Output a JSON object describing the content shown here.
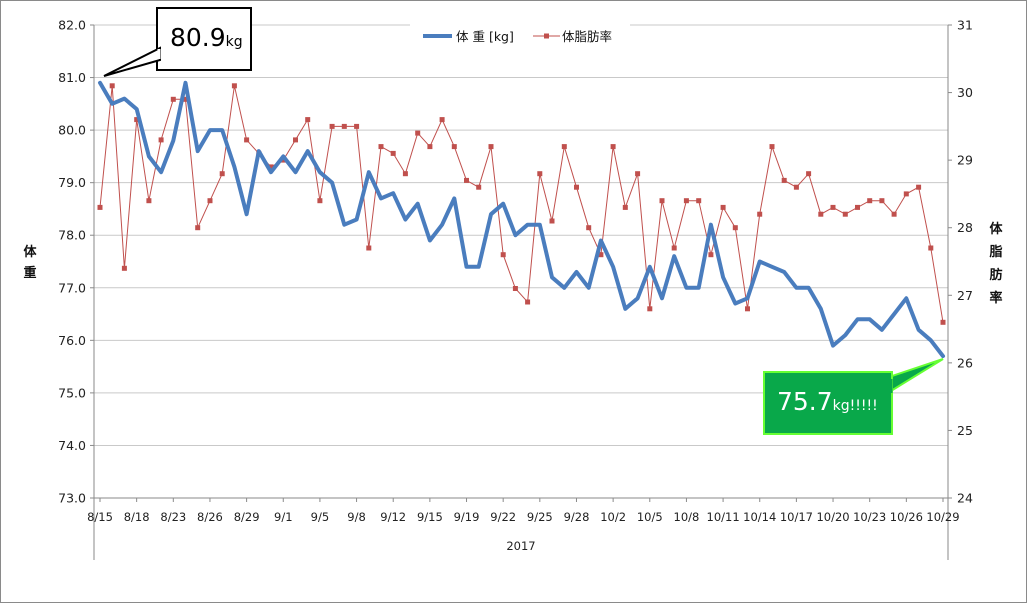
{
  "chart_data": {
    "type": "line",
    "title": "",
    "legend": {
      "placement": "top-center",
      "entries": [
        "体 重 [kg]",
        "体脂肪率"
      ]
    },
    "y_left": {
      "label_chars": [
        "体",
        "重"
      ],
      "ylim": [
        73.0,
        82.0
      ],
      "ticks": [
        "73.0",
        "74.0",
        "75.0",
        "76.0",
        "77.0",
        "78.0",
        "79.0",
        "80.0",
        "81.0",
        "82.0"
      ]
    },
    "y_right": {
      "label_chars": [
        "体",
        "脂",
        "肪",
        "率"
      ],
      "ylim": [
        24,
        31
      ],
      "ticks": [
        "24",
        "25",
        "26",
        "27",
        "28",
        "29",
        "30",
        "31"
      ]
    },
    "x_tick_labels": [
      "8/15",
      "8/18",
      "8/23",
      "8/26",
      "8/29",
      "9/1",
      "9/5",
      "9/8",
      "9/12",
      "9/15",
      "9/19",
      "9/22",
      "9/25",
      "9/28",
      "10/2",
      "10/5",
      "10/8",
      "10/11",
      "10/14",
      "10/17",
      "10/20",
      "10/23",
      "10/26",
      "10/29"
    ],
    "x_group_label": "2017",
    "grid": true,
    "colors": {
      "weight": "#4a7dbe",
      "bodyfat": "#c0504d",
      "grid": "#c9c9c9",
      "callout_green": "#09a84a",
      "callout_green_border": "#66ff33"
    },
    "series": [
      {
        "name": "体 重 [kg]",
        "axis": "left",
        "values": [
          80.9,
          80.5,
          80.6,
          80.4,
          79.5,
          79.2,
          79.8,
          80.9,
          79.6,
          80.0,
          80.0,
          79.3,
          78.4,
          79.6,
          79.2,
          79.5,
          79.2,
          79.6,
          79.2,
          79.0,
          78.2,
          78.3,
          79.2,
          78.7,
          78.8,
          78.3,
          78.6,
          77.9,
          78.2,
          78.7,
          77.4,
          77.4,
          78.4,
          78.6,
          78.0,
          78.2,
          78.2,
          77.2,
          77.0,
          77.3,
          77.0,
          77.9,
          77.4,
          76.6,
          76.8,
          77.4,
          76.8,
          77.6,
          77.0,
          77.0,
          78.2,
          77.2,
          76.7,
          76.8,
          77.5,
          77.4,
          77.3,
          77.0,
          77.0,
          76.6,
          75.9,
          76.1,
          76.4,
          76.4,
          76.2,
          76.5,
          76.8,
          76.2,
          76.0,
          75.7
        ]
      },
      {
        "name": "体脂肪率",
        "axis": "right",
        "values": [
          28.3,
          30.1,
          27.4,
          29.6,
          28.4,
          29.3,
          29.9,
          29.9,
          28.0,
          28.4,
          28.8,
          30.1,
          29.3,
          29.1,
          28.9,
          29.0,
          29.3,
          29.6,
          28.4,
          29.5,
          29.5,
          29.5,
          27.7,
          29.2,
          29.1,
          28.8,
          29.4,
          29.2,
          29.6,
          29.2,
          28.7,
          28.6,
          29.2,
          27.6,
          27.1,
          26.9,
          28.8,
          28.1,
          29.2,
          28.6,
          28.0,
          27.6,
          29.2,
          28.3,
          28.8,
          26.8,
          28.4,
          27.7,
          28.4,
          28.4,
          27.6,
          28.3,
          28.0,
          26.8,
          28.2,
          29.2,
          28.7,
          28.6,
          28.8,
          28.2,
          28.3,
          28.2,
          28.3,
          28.4,
          28.4,
          28.2,
          28.5,
          28.6,
          27.7,
          26.6
        ]
      }
    ],
    "annotations": [
      {
        "value": "80.9",
        "unit": "kg",
        "point_index": 0
      },
      {
        "value": "75.7",
        "unit": "kg!!!!!",
        "point_index": 69
      }
    ]
  }
}
